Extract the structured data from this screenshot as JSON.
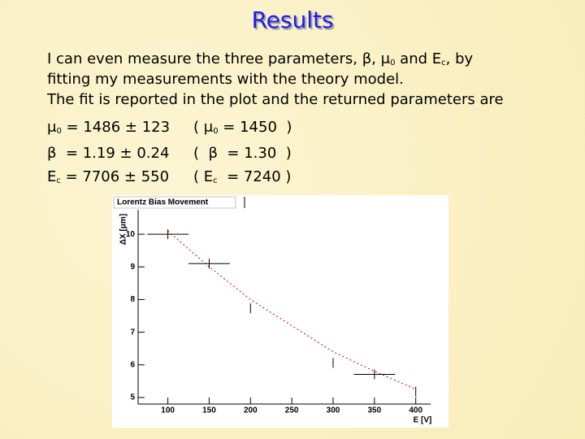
{
  "title": "Results",
  "intro": [
    [
      {
        "t": "I can even measure the three parameters, β, μ"
      },
      {
        "sub": "0"
      },
      {
        "t": " and E"
      },
      {
        "sub": "c"
      },
      {
        "t": ", by"
      }
    ],
    [
      {
        "t": "fitting my measurements with the theory model."
      }
    ],
    [
      {
        "t": "The fit is reported in the plot and the returned parameters are"
      }
    ]
  ],
  "results": [
    [
      [
        {
          "t": "μ"
        },
        {
          "sub": "0"
        },
        {
          "t": " = 1486 ± 123"
        }
      ],
      [
        {
          "t": "( μ"
        },
        {
          "sub": "0"
        },
        {
          "t": " = 1450  )"
        }
      ]
    ],
    [
      [
        {
          "t": "β  = 1.19 ± 0.24"
        }
      ],
      [
        {
          "t": "(  β  = 1.30  )"
        }
      ]
    ],
    [
      [
        {
          "t": "E"
        },
        {
          "sub": "c"
        },
        {
          "t": " = 7706 ± 550"
        }
      ],
      [
        {
          "t": "( E"
        },
        {
          "sub": "c"
        },
        {
          "t": "  = 7240 )"
        }
      ]
    ]
  ],
  "chart_data": {
    "type": "errorbar",
    "title": "Lorentz Bias Movement",
    "x_label": "E [V]",
    "y_label": "ΔX [μm]",
    "xlim": [
      64,
      418
    ],
    "ylim": [
      4.8,
      10.75
    ],
    "xticks": [
      100,
      150,
      200,
      250,
      300,
      350,
      400
    ],
    "yticks": [
      5,
      6,
      7,
      8,
      9,
      10
    ],
    "series": [
      {
        "color": "#000000",
        "x": [
          100,
          150,
          200,
          300,
          350,
          400
        ],
        "values": [
          10.0,
          9.1,
          7.73,
          6.06,
          5.71,
          5.18
        ],
        "x_errors": [
          25,
          25,
          0,
          0,
          25,
          0
        ],
        "y_errors": [
          0.15,
          0.15,
          0.15,
          0.15,
          0.15,
          0.15
        ]
      },
      {
        "color": "#cc0000",
        "x": [
          100,
          150,
          200,
          250,
          300,
          350,
          400
        ],
        "values": [
          10.1,
          9.0,
          8.0,
          7.2,
          6.4,
          5.8,
          5.25
        ]
      }
    ]
  }
}
